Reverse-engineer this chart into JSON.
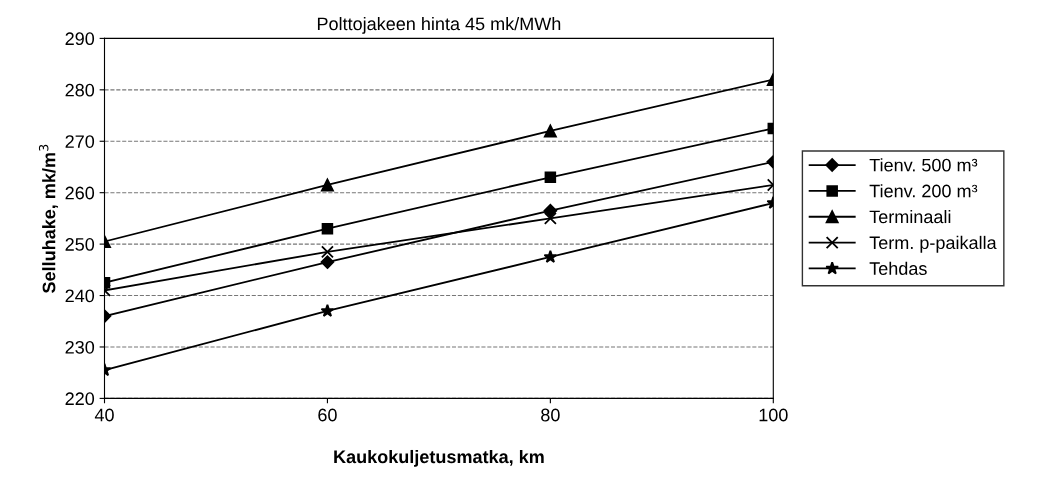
{
  "chart_data": {
    "type": "line",
    "title": "Polttojakeen hinta 45 mk/MWh",
    "xlabel": "Kaukokuljetusmatka, km",
    "ylabel": "Selluhake, mk/m$^{3}$",
    "x": [
      40,
      60,
      80,
      100
    ],
    "xlim": [
      40,
      100
    ],
    "xticks": [
      40,
      60,
      80,
      100
    ],
    "ylim": [
      220,
      290
    ],
    "yticks": [
      220,
      230,
      240,
      250,
      260,
      270,
      280,
      290
    ],
    "grid": "y",
    "legend": "right",
    "line_style": "solid",
    "series": [
      {
        "name": "Tienv. 500 m³",
        "color": "#000000",
        "marker": "diamond",
        "values": [
          236,
          246.5,
          256.5,
          266
        ]
      },
      {
        "name": "Tienv. 200 m³",
        "color": "#000000",
        "marker": "square",
        "values": [
          242.5,
          253,
          263,
          272.5
        ]
      },
      {
        "name": "Terminaali",
        "color": "#000000",
        "marker": "triangle",
        "values": [
          250.5,
          261.5,
          272,
          282
        ]
      },
      {
        "name": "Term. p-paikalla",
        "color": "#000000",
        "marker": "cross",
        "values": [
          241,
          248.5,
          255,
          261.5
        ]
      },
      {
        "name": "Tehdas",
        "color": "#000000",
        "marker": "star",
        "values": [
          225.5,
          237,
          247.5,
          258
        ]
      }
    ]
  }
}
